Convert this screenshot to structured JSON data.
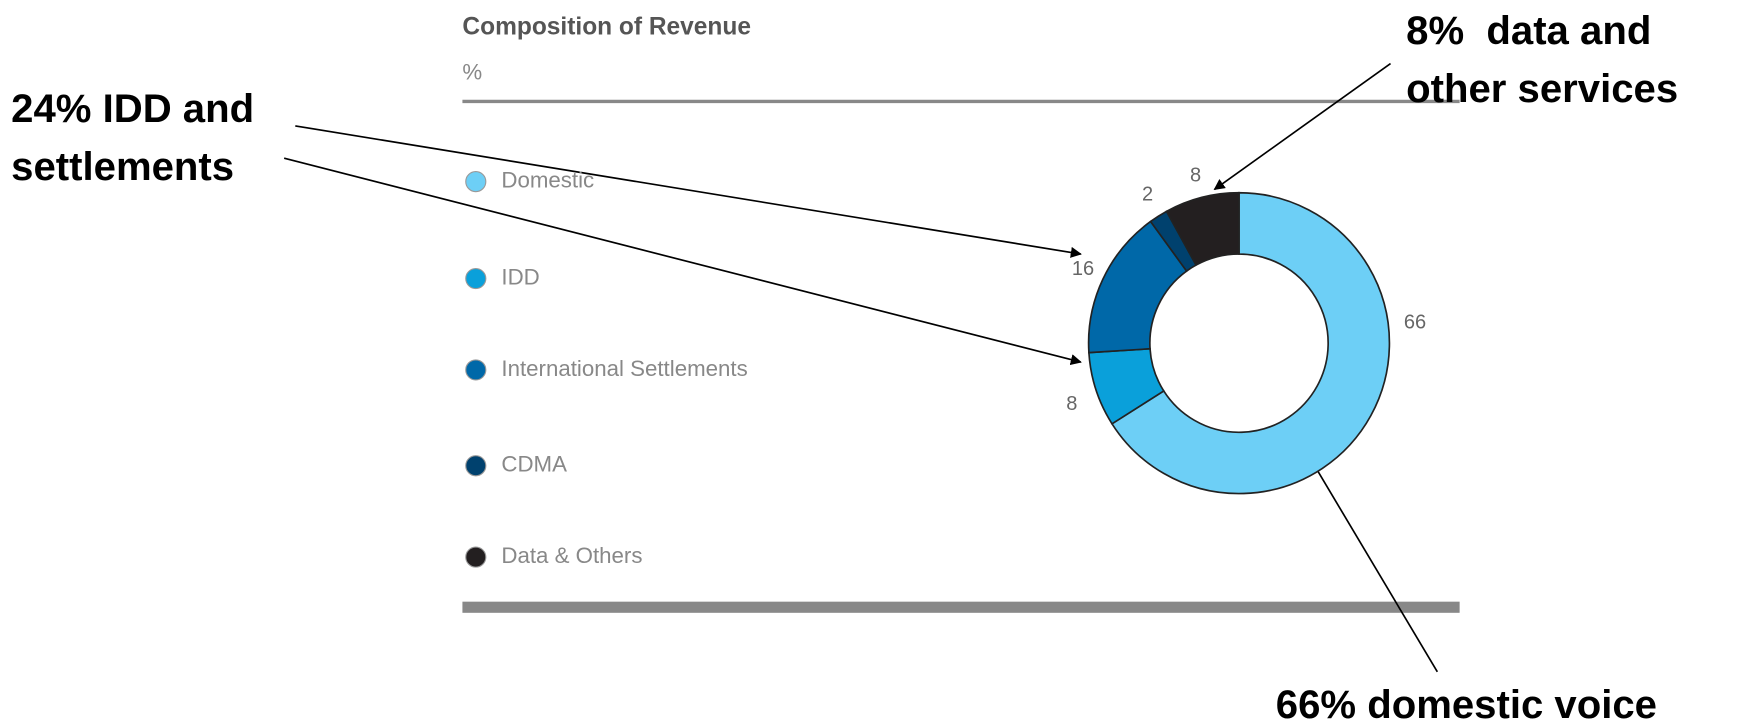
{
  "chart_data": {
    "type": "donut",
    "title": "Composition of Revenue",
    "subtitle": "%",
    "categories": [
      "Domestic",
      "IDD",
      "International Settlements",
      "CDMA",
      "Data & Others"
    ],
    "values": [
      66,
      8,
      16,
      2,
      8
    ],
    "colors": [
      "#6dcff6",
      "#0aa0da",
      "#0068a8",
      "#00416e",
      "#231f20"
    ],
    "annotations": [
      {
        "lines": [
          "24% IDD and",
          "settlements"
        ]
      },
      {
        "lines": [
          "8%  data and",
          "other services"
        ]
      },
      {
        "lines": [
          "66% domestic voice"
        ]
      }
    ]
  }
}
